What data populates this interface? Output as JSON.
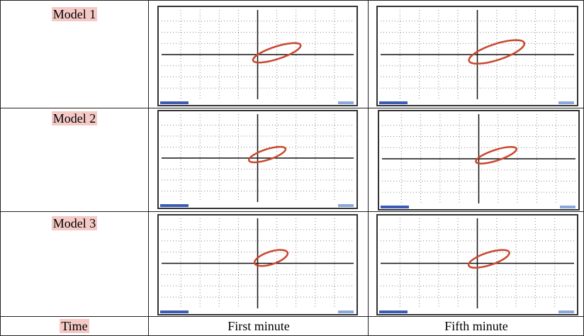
{
  "table": {
    "rows": [
      {
        "label": "Model 1"
      },
      {
        "label": "Model 2"
      },
      {
        "label": "Model 3"
      }
    ],
    "footer": [
      "Time",
      "First minute",
      "Fifth minute"
    ]
  }
}
